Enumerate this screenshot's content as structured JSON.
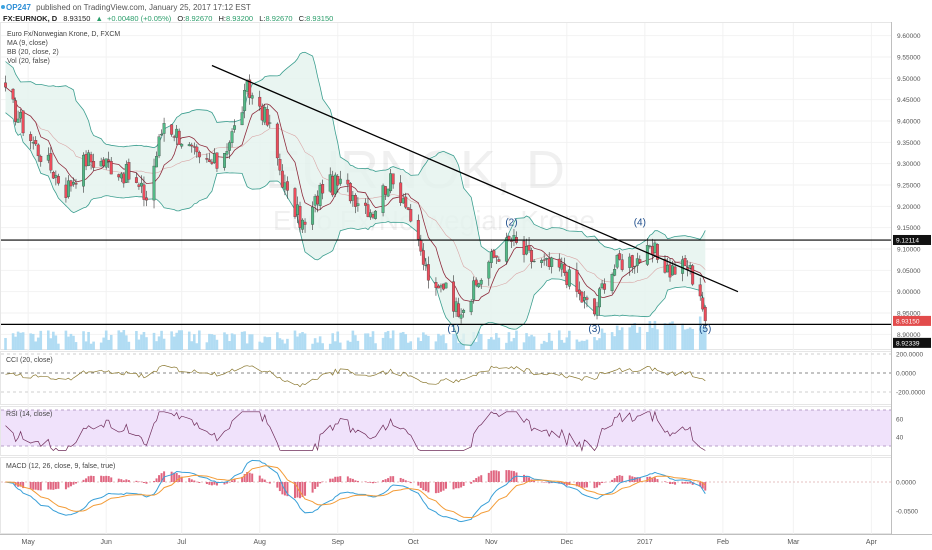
{
  "header": {
    "line1_author": "OP247",
    "line1_rest": "published on TradingView.com, January 25, 2017 17:12 EST",
    "symbol": "FX:EURNOK, D",
    "last": "8.93150",
    "change": "+0.00480 (+0.05%)",
    "o_label": "O:",
    "o_value": "8.92670",
    "h_label": "H:",
    "h_value": "8.93200",
    "l_label": "L:",
    "l_value": "8.92670",
    "c_label": "C:",
    "c_value": "8.93150"
  },
  "legend": {
    "title": "Euro Fx/Norwegian Krone, D, FXCM",
    "ma": "MA (9, close)",
    "bb": "BB (20, close, 2)",
    "vol": "Vol (20, false)"
  },
  "watermark": {
    "symbol": "EURNOK, D",
    "name": "Euro Fx/Norwegian Krone"
  },
  "wave_labels": [
    {
      "text": "(1)",
      "date": "2016-10-17",
      "price": 8.905
    },
    {
      "text": "(2)",
      "date": "2016-11-09",
      "price": 9.155
    },
    {
      "text": "(3)",
      "date": "2016-12-12",
      "price": 8.905
    },
    {
      "text": "(4)",
      "date": "2016-12-30",
      "price": 9.155
    },
    {
      "text": "(5)",
      "date": "2017-01-25",
      "price": 8.905
    }
  ],
  "price_axis": {
    "ticks": [
      "9.60000",
      "9.55000",
      "9.50000",
      "9.45000",
      "9.40000",
      "9.35000",
      "9.30000",
      "9.25000",
      "9.20000",
      "9.15000",
      "9.10000",
      "9.05000",
      "9.00000",
      "8.95000",
      "8.90000"
    ],
    "level_labels": [
      {
        "text": "9.12114",
        "price": 9.12114
      },
      {
        "text": "8.93150",
        "price": 8.9315
      },
      {
        "text": "8.92339",
        "price": 8.88
      }
    ]
  },
  "cci": {
    "label": "CCI (20, close)",
    "ticks": [
      "200.0000",
      "0.0000",
      "-200.0000"
    ]
  },
  "rsi": {
    "label": "RSI (14, close)",
    "ticks": [
      "60",
      "40"
    ]
  },
  "macd": {
    "label": "MACD (12, 26, close, 9, false, true)",
    "ticks": [
      "0.0000",
      "-0.0500"
    ]
  },
  "time_axis": [
    "May",
    "Jun",
    "Jul",
    "Aug",
    "Sep",
    "Oct",
    "Nov",
    "Dec",
    "2017",
    "Feb",
    "Mar",
    "Apr"
  ],
  "colors": {
    "up": "#53b987",
    "down": "#eb4d5c",
    "bb": "#3b9e8f",
    "bb_fill": "#e3f3ee",
    "ma": "#8e2b3c",
    "volume": "#a9d8f2",
    "cci": "#8c7a33",
    "rsi": "#6f2c5a",
    "rsi_band": "#f0e2fb",
    "macd": "#3aa0d8",
    "signal": "#f39c38"
  },
  "chart_data": {
    "type": "candlestick",
    "title": "Euro Fx/Norwegian Krone, D, FXCM",
    "x_range": [
      "2016-04-21",
      "2017-04-08"
    ],
    "y_range": [
      8.875,
      9.625
    ],
    "annotations": [
      {
        "type": "trendline",
        "from": {
          "date": "2016-07-13",
          "price": 9.53
        },
        "to": {
          "date": "2017-02-07",
          "price": 9.0
        }
      },
      {
        "type": "horizontal",
        "price": 9.121
      },
      {
        "type": "horizontal",
        "price": 8.92339
      }
    ],
    "anchor_closes": [
      {
        "date": "2016-04-22",
        "close": 9.46
      },
      {
        "date": "2016-05-04",
        "close": 9.34
      },
      {
        "date": "2016-05-16",
        "close": 9.24
      },
      {
        "date": "2016-05-24",
        "close": 9.31
      },
      {
        "date": "2016-06-02",
        "close": 9.3
      },
      {
        "date": "2016-06-10",
        "close": 9.27
      },
      {
        "date": "2016-06-17",
        "close": 9.22
      },
      {
        "date": "2016-06-24",
        "close": 9.4
      },
      {
        "date": "2016-07-01",
        "close": 9.36
      },
      {
        "date": "2016-07-08",
        "close": 9.3
      },
      {
        "date": "2016-07-15",
        "close": 9.3
      },
      {
        "date": "2016-07-22",
        "close": 9.38
      },
      {
        "date": "2016-07-27",
        "close": 9.47
      },
      {
        "date": "2016-08-01",
        "close": 9.44
      },
      {
        "date": "2016-08-05",
        "close": 9.38
      },
      {
        "date": "2016-08-12",
        "close": 9.22
      },
      {
        "date": "2016-08-19",
        "close": 9.15
      },
      {
        "date": "2016-08-26",
        "close": 9.25
      },
      {
        "date": "2016-09-02",
        "close": 9.25
      },
      {
        "date": "2016-09-09",
        "close": 9.22
      },
      {
        "date": "2016-09-15",
        "close": 9.19
      },
      {
        "date": "2016-09-21",
        "close": 9.26
      },
      {
        "date": "2016-09-28",
        "close": 9.22
      },
      {
        "date": "2016-10-03",
        "close": 9.1
      },
      {
        "date": "2016-10-10",
        "close": 8.99
      },
      {
        "date": "2016-10-14",
        "close": 9.03
      },
      {
        "date": "2016-10-18",
        "close": 8.96
      },
      {
        "date": "2016-10-24",
        "close": 8.99
      },
      {
        "date": "2016-10-31",
        "close": 9.07
      },
      {
        "date": "2016-11-09",
        "close": 9.12
      },
      {
        "date": "2016-11-16",
        "close": 9.08
      },
      {
        "date": "2016-11-23",
        "close": 9.06
      },
      {
        "date": "2016-11-30",
        "close": 9.05
      },
      {
        "date": "2016-12-06",
        "close": 8.99
      },
      {
        "date": "2016-12-12",
        "close": 8.95
      },
      {
        "date": "2016-12-16",
        "close": 9.03
      },
      {
        "date": "2016-12-22",
        "close": 9.07
      },
      {
        "date": "2016-12-30",
        "close": 9.08
      },
      {
        "date": "2017-01-05",
        "close": 9.09
      },
      {
        "date": "2017-01-11",
        "close": 9.05
      },
      {
        "date": "2017-01-18",
        "close": 9.06
      },
      {
        "date": "2017-01-23",
        "close": 9.0
      },
      {
        "date": "2017-01-25",
        "close": 8.9315
      }
    ]
  }
}
